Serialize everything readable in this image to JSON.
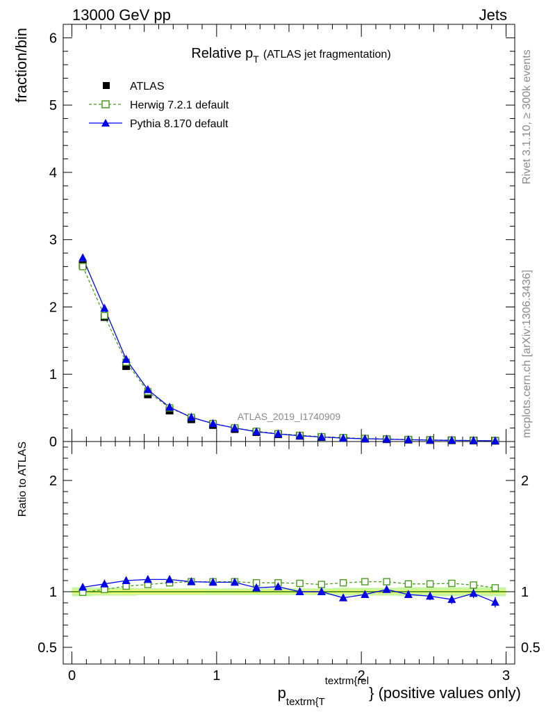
{
  "header": {
    "left": "13000 GeV pp",
    "right": "Jets"
  },
  "side": {
    "rivet": "Rivet 3.1.10, ≥ 300k events",
    "mcplots": "mcplots.cern.ch [arXiv:1306.3436]"
  },
  "colors": {
    "atlas": "#000000",
    "herwig": "#4a9a1e",
    "pythia": "#0000ee",
    "band_inner": "#f0f870",
    "band_outer": "#c8f5a0"
  },
  "chart_data": [
    {
      "type": "line",
      "title": "Relative p",
      "title_sub": "T",
      "title_suffix": "(ATLAS jet fragmentation)",
      "ylabel": "fraction/bin",
      "watermark": "ATLAS_2019_I1740909",
      "xlim": [
        -0.06,
        3.06
      ],
      "ylim": [
        0,
        6.2
      ],
      "yticks": [
        0,
        1,
        2,
        3,
        4,
        5,
        6
      ],
      "x": [
        0.075,
        0.225,
        0.375,
        0.525,
        0.675,
        0.825,
        0.975,
        1.125,
        1.275,
        1.425,
        1.575,
        1.725,
        1.875,
        2.025,
        2.175,
        2.325,
        2.475,
        2.625,
        2.775,
        2.925
      ],
      "series": [
        {
          "name": "ATLAS",
          "marker": "filled-square",
          "values": [
            2.62,
            1.85,
            1.12,
            0.7,
            0.46,
            0.33,
            0.245,
            0.185,
            0.14,
            0.108,
            0.085,
            0.067,
            0.053,
            0.042,
            0.034,
            0.027,
            0.022,
            0.018,
            0.014,
            0.011
          ]
        },
        {
          "name": "Herwig 7.2.1 default",
          "marker": "open-square",
          "style": "dashed",
          "values": [
            2.6,
            1.87,
            1.18,
            0.74,
            0.5,
            0.36,
            0.268,
            0.203,
            0.152,
            0.117,
            0.092,
            0.071,
            0.057,
            0.045,
            0.037,
            0.029,
            0.024,
            0.019,
            0.015,
            0.012
          ]
        },
        {
          "name": "Pythia 8.170 default",
          "marker": "filled-triangle",
          "style": "solid",
          "values": [
            2.73,
            1.98,
            1.22,
            0.77,
            0.51,
            0.36,
            0.266,
            0.201,
            0.145,
            0.112,
            0.085,
            0.067,
            0.05,
            0.041,
            0.035,
            0.027,
            0.021,
            0.017,
            0.014,
            0.01
          ]
        }
      ]
    },
    {
      "type": "line",
      "title": "",
      "ylabel": "Ratio to ATLAS",
      "xlabel_main": "p",
      "xlabel_sub": "textrm{T",
      "xlabel_sup": "textrm{rel",
      "xlabel_suffix": "} (positive values only)",
      "xlim": [
        -0.06,
        3.06
      ],
      "ylim": [
        0.35,
        2.35
      ],
      "yticks": [
        0.5,
        1,
        2
      ],
      "ytick_labels": [
        "0.5",
        "1",
        "2"
      ],
      "xticks": [
        0,
        1,
        2,
        3
      ],
      "xtick_labels": [
        "0",
        "1",
        "2",
        "3"
      ],
      "x": [
        0.075,
        0.225,
        0.375,
        0.525,
        0.675,
        0.825,
        0.975,
        1.125,
        1.275,
        1.425,
        1.575,
        1.725,
        1.875,
        2.025,
        2.175,
        2.325,
        2.475,
        2.625,
        2.775,
        2.925
      ],
      "band_inner": [
        0.015,
        0.018,
        0.02,
        0.02,
        0.02,
        0.02,
        0.015,
        0.015,
        0.015,
        0.015,
        0.015,
        0.015,
        0.015,
        0.015,
        0.015,
        0.015,
        0.015,
        0.015,
        0.015,
        0.015
      ],
      "band_outer": [
        0.04,
        0.035,
        0.035,
        0.03,
        0.03,
        0.03,
        0.03,
        0.03,
        0.03,
        0.03,
        0.03,
        0.03,
        0.035,
        0.035,
        0.035,
        0.04,
        0.04,
        0.04,
        0.04,
        0.04
      ],
      "series": [
        {
          "name": "Herwig 7.2.1 default",
          "marker": "open-square",
          "style": "dashed",
          "values": [
            0.995,
            1.02,
            1.05,
            1.065,
            1.08,
            1.09,
            1.09,
            1.09,
            1.08,
            1.08,
            1.075,
            1.065,
            1.08,
            1.09,
            1.09,
            1.07,
            1.07,
            1.075,
            1.06,
            1.035
          ],
          "errors": [
            0.005,
            0.005,
            0.005,
            0.005,
            0.005,
            0.005,
            0.006,
            0.006,
            0.006,
            0.007,
            0.008,
            0.009,
            0.01,
            0.012,
            0.013,
            0.015,
            0.017,
            0.019,
            0.022,
            0.026
          ]
        },
        {
          "name": "Pythia 8.170 default",
          "marker": "filled-triangle",
          "style": "solid",
          "values": [
            1.04,
            1.07,
            1.1,
            1.11,
            1.11,
            1.09,
            1.085,
            1.085,
            1.035,
            1.045,
            1.0,
            1.0,
            0.945,
            0.975,
            1.02,
            0.975,
            0.96,
            0.93,
            0.985,
            0.905
          ],
          "errors": [
            0.005,
            0.006,
            0.006,
            0.007,
            0.008,
            0.009,
            0.01,
            0.011,
            0.012,
            0.014,
            0.017,
            0.02,
            0.024,
            0.027,
            0.03,
            0.033,
            0.036,
            0.04,
            0.043,
            0.047
          ]
        }
      ]
    }
  ]
}
